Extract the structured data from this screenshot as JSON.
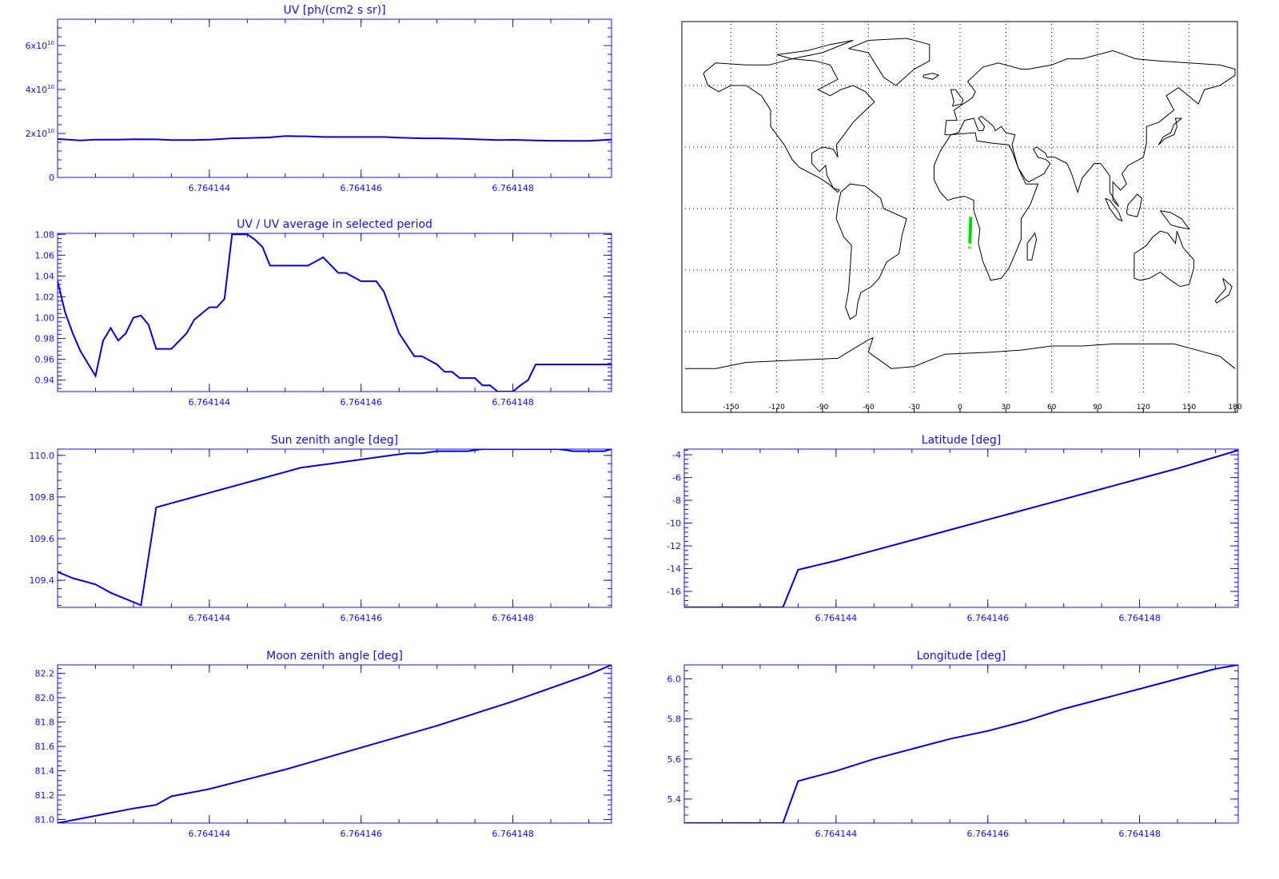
{
  "chart_data": [
    {
      "id": "uv",
      "type": "line",
      "title": "UV [ph/(cm2 s sr)]",
      "title_parts": [
        "UV [ph/(cm^2 s sr)]"
      ],
      "xlim": [
        6.764142,
        6.7641493
      ],
      "ylim": [
        0,
        72000000000.0
      ],
      "x_ticks": [
        6.764144,
        6.764146,
        6.764148
      ],
      "x_tick_labels": [
        "6.764144",
        "6.764146",
        "6.764148"
      ],
      "y_ticks": [
        0,
        20000000000.0,
        40000000000.0,
        60000000000.0
      ],
      "y_tick_labels": [
        {
          "base": "0",
          "exp": ""
        },
        {
          "base": "2x10",
          "exp": "10"
        },
        {
          "base": "4x10",
          "exp": "10"
        },
        {
          "base": "6x10",
          "exp": "10"
        }
      ],
      "color": "#0000ee",
      "series": [
        {
          "x": [
            6.764142,
            6.7641423,
            6.7641425,
            6.7641428,
            6.764143,
            6.7641433,
            6.7641435,
            6.7641438,
            6.764144,
            6.7641443,
            6.7641445,
            6.7641448,
            6.764145,
            6.7641453,
            6.7641455,
            6.7641458,
            6.764146,
            6.7641463,
            6.7641465,
            6.7641468,
            6.764147,
            6.7641473,
            6.7641475,
            6.7641478,
            6.764148,
            6.7641483,
            6.7641485,
            6.7641488,
            6.764149,
            6.7641493
          ],
          "y": [
            17500000000.0,
            16800000000.0,
            17200000000.0,
            17200000000.0,
            17400000000.0,
            17300000000.0,
            17000000000.0,
            17000000000.0,
            17200000000.0,
            17800000000.0,
            17900000000.0,
            18200000000.0,
            18800000000.0,
            18700000000.0,
            18400000000.0,
            18400000000.0,
            18400000000.0,
            18400000000.0,
            18100000000.0,
            17800000000.0,
            17800000000.0,
            17600000000.0,
            17400000000.0,
            17000000000.0,
            17100000000.0,
            16800000000.0,
            16700000000.0,
            16600000000.0,
            16600000000.0,
            17200000000.0
          ]
        }
      ]
    },
    {
      "id": "uv-ratio",
      "type": "line",
      "title": "UV / UV average in selected period",
      "xlim": [
        6.764142,
        6.7641493
      ],
      "ylim": [
        0.929,
        1.081
      ],
      "x_ticks": [
        6.764144,
        6.764146,
        6.764148
      ],
      "x_tick_labels": [
        "6.764144",
        "6.764146",
        "6.764148"
      ],
      "y_ticks": [
        0.94,
        0.96,
        0.98,
        1.0,
        1.02,
        1.04,
        1.06,
        1.08
      ],
      "y_tick_labels": [
        "0.94",
        "0.96",
        "0.98",
        "1.00",
        "1.02",
        "1.04",
        "1.06",
        "1.08"
      ],
      "color": "#0000ee",
      "series": [
        {
          "x": [
            6.764142,
            6.7641421,
            6.7641422,
            6.7641423,
            6.7641425,
            6.7641426,
            6.7641427,
            6.7641428,
            6.7641429,
            6.764143,
            6.7641431,
            6.7641432,
            6.7641433,
            6.7641435,
            6.7641437,
            6.7641438,
            6.764144,
            6.7641441,
            6.7641442,
            6.7641443,
            6.7641445,
            6.7641446,
            6.7641447,
            6.7641448,
            6.764145,
            6.7641451,
            6.7641452,
            6.7641453,
            6.7641455,
            6.7641457,
            6.7641458,
            6.764146,
            6.7641461,
            6.7641462,
            6.7641463,
            6.7641465,
            6.7641467,
            6.7641468,
            6.764147,
            6.7641471,
            6.7641472,
            6.7641473,
            6.7641475,
            6.7641476,
            6.7641477,
            6.7641478,
            6.764148,
            6.7641481,
            6.7641482,
            6.7641483,
            6.7641485,
            6.7641487,
            6.7641488,
            6.764149,
            6.7641492,
            6.7641493
          ],
          "y": [
            1.035,
            1.005,
            0.985,
            0.968,
            0.944,
            0.978,
            0.99,
            0.978,
            0.985,
            1.0,
            1.002,
            0.993,
            0.97,
            0.97,
            0.985,
            0.998,
            1.01,
            1.01,
            1.018,
            1.08,
            1.08,
            1.075,
            1.068,
            1.05,
            1.05,
            1.05,
            1.05,
            1.05,
            1.058,
            1.043,
            1.043,
            1.035,
            1.035,
            1.035,
            1.025,
            0.985,
            0.963,
            0.963,
            0.955,
            0.948,
            0.948,
            0.942,
            0.942,
            0.935,
            0.935,
            0.929,
            0.929,
            0.935,
            0.94,
            0.955,
            0.955,
            0.955,
            0.955,
            0.955,
            0.955,
            0.955
          ]
        }
      ]
    },
    {
      "id": "sun-zenith",
      "type": "line",
      "title": "Sun zenith angle [deg]",
      "xlim": [
        6.764142,
        6.7641493
      ],
      "ylim": [
        109.27,
        110.03
      ],
      "x_ticks": [
        6.764144,
        6.764146,
        6.764148
      ],
      "x_tick_labels": [
        "6.764144",
        "6.764146",
        "6.764148"
      ],
      "y_ticks": [
        109.4,
        109.6,
        109.8,
        110.0
      ],
      "y_tick_labels": [
        "109.4",
        "109.6",
        "109.8",
        "110.0"
      ],
      "color": "#0000ee",
      "series": [
        {
          "x": [
            6.764142,
            6.7641422,
            6.7641425,
            6.7641427,
            6.7641429,
            6.7641431,
            6.7641433,
            6.7641435,
            6.7641437,
            6.7641438,
            6.764144,
            6.7641442,
            6.7641444,
            6.7641446,
            6.7641448,
            6.764145,
            6.7641452,
            6.7641454,
            6.7641456,
            6.7641458,
            6.764146,
            6.7641462,
            6.7641464,
            6.7641466,
            6.7641468,
            6.764147,
            6.7641472,
            6.7641474,
            6.7641476,
            6.7641478,
            6.764148,
            6.7641482,
            6.7641484,
            6.7641486,
            6.7641488,
            6.764149,
            6.7641492,
            6.7641493
          ],
          "y": [
            109.44,
            109.41,
            109.38,
            109.34,
            109.31,
            109.28,
            109.75,
            109.77,
            109.79,
            109.8,
            109.82,
            109.84,
            109.86,
            109.88,
            109.9,
            109.92,
            109.94,
            109.95,
            109.96,
            109.97,
            109.98,
            109.99,
            110.0,
            110.01,
            110.01,
            110.02,
            110.02,
            110.02,
            110.03,
            110.03,
            110.03,
            110.03,
            110.03,
            110.03,
            110.02,
            110.02,
            110.02,
            110.03
          ]
        }
      ]
    },
    {
      "id": "latitude",
      "type": "line",
      "title": "Latitude [deg]",
      "xlim": [
        6.764142,
        6.7641493
      ],
      "ylim": [
        -17.4,
        -3.5
      ],
      "x_ticks": [
        6.764144,
        6.764146,
        6.764148
      ],
      "x_tick_labels": [
        "6.764144",
        "6.764146",
        "6.764148"
      ],
      "y_ticks": [
        -16,
        -14,
        -12,
        -10,
        -8,
        -6,
        -4
      ],
      "y_tick_labels": [
        "-16",
        "-14",
        "-12",
        "-10",
        "-8",
        "-6",
        "-4"
      ],
      "color": "#0000ee",
      "series": [
        {
          "x": [
            6.764142,
            6.7641433,
            6.7641435,
            6.764144,
            6.7641445,
            6.764145,
            6.7641455,
            6.764146,
            6.7641465,
            6.764147,
            6.7641475,
            6.764148,
            6.7641485,
            6.764149,
            6.7641493
          ],
          "y": [
            -17.4,
            -17.4,
            -14.1,
            -13.3,
            -12.4,
            -11.5,
            -10.6,
            -9.7,
            -8.8,
            -7.9,
            -7.0,
            -6.1,
            -5.2,
            -4.2,
            -3.6
          ]
        }
      ]
    },
    {
      "id": "moon-zenith",
      "type": "line",
      "title": "Moon zenith angle [deg]",
      "xlim": [
        6.764142,
        6.7641493
      ],
      "ylim": [
        80.97,
        82.27
      ],
      "x_ticks": [
        6.764144,
        6.764146,
        6.764148
      ],
      "x_tick_labels": [
        "6.764144",
        "6.764146",
        "6.764148"
      ],
      "y_ticks": [
        81.0,
        81.2,
        81.4,
        81.6,
        81.8,
        82.0,
        82.2
      ],
      "y_tick_labels": [
        "81.0",
        "81.2",
        "81.4",
        "81.6",
        "81.8",
        "82.0",
        "82.2"
      ],
      "color": "#0000ee",
      "series": [
        {
          "x": [
            6.764142,
            6.7641425,
            6.764143,
            6.7641433,
            6.7641435,
            6.764144,
            6.7641445,
            6.764145,
            6.7641455,
            6.764146,
            6.7641465,
            6.764147,
            6.7641475,
            6.764148,
            6.7641485,
            6.764149,
            6.7641493
          ],
          "y": [
            80.97,
            81.03,
            81.09,
            81.12,
            81.19,
            81.25,
            81.33,
            81.41,
            81.5,
            81.59,
            81.68,
            81.77,
            81.87,
            81.97,
            82.08,
            82.19,
            82.27
          ]
        }
      ]
    },
    {
      "id": "longitude",
      "type": "line",
      "title": "Longitude [deg]",
      "xlim": [
        6.764142,
        6.7641493
      ],
      "ylim": [
        5.28,
        6.07
      ],
      "x_ticks": [
        6.764144,
        6.764146,
        6.764148
      ],
      "x_tick_labels": [
        "6.764144",
        "6.764146",
        "6.764148"
      ],
      "y_ticks": [
        5.4,
        5.6,
        5.8,
        6.0
      ],
      "y_tick_labels": [
        "5.4",
        "5.6",
        "5.8",
        "6.0"
      ],
      "color": "#0000ee",
      "series": [
        {
          "x": [
            6.764142,
            6.7641433,
            6.7641435,
            6.764144,
            6.7641445,
            6.764145,
            6.7641455,
            6.764146,
            6.7641465,
            6.764147,
            6.7641475,
            6.764148,
            6.7641485,
            6.764149,
            6.7641493
          ],
          "y": [
            5.28,
            5.28,
            5.49,
            5.54,
            5.6,
            5.65,
            5.7,
            5.74,
            5.79,
            5.85,
            5.9,
            5.95,
            6.0,
            6.05,
            6.07
          ]
        }
      ]
    }
  ],
  "map": {
    "x_ticks": [
      -150,
      -120,
      -90,
      -60,
      -30,
      0,
      30,
      60,
      90,
      120,
      150,
      180
    ],
    "x_tick_labels": [
      "-150",
      "-120",
      "-90",
      "-60",
      "-30",
      "0",
      "30",
      "60",
      "90",
      "120",
      "150",
      "180"
    ],
    "lat_grid": [
      60,
      30,
      0,
      -30,
      -60
    ],
    "lon_range": [
      -180,
      180
    ],
    "lat_range": [
      -90,
      90
    ],
    "track": {
      "lon": [
        7.0,
        6.4
      ],
      "lat": [
        -4.0,
        -17.0
      ],
      "color": "#00dd00"
    },
    "start_marker": {
      "lon": 6.2,
      "lat": -17.8,
      "symbol": "*"
    }
  }
}
